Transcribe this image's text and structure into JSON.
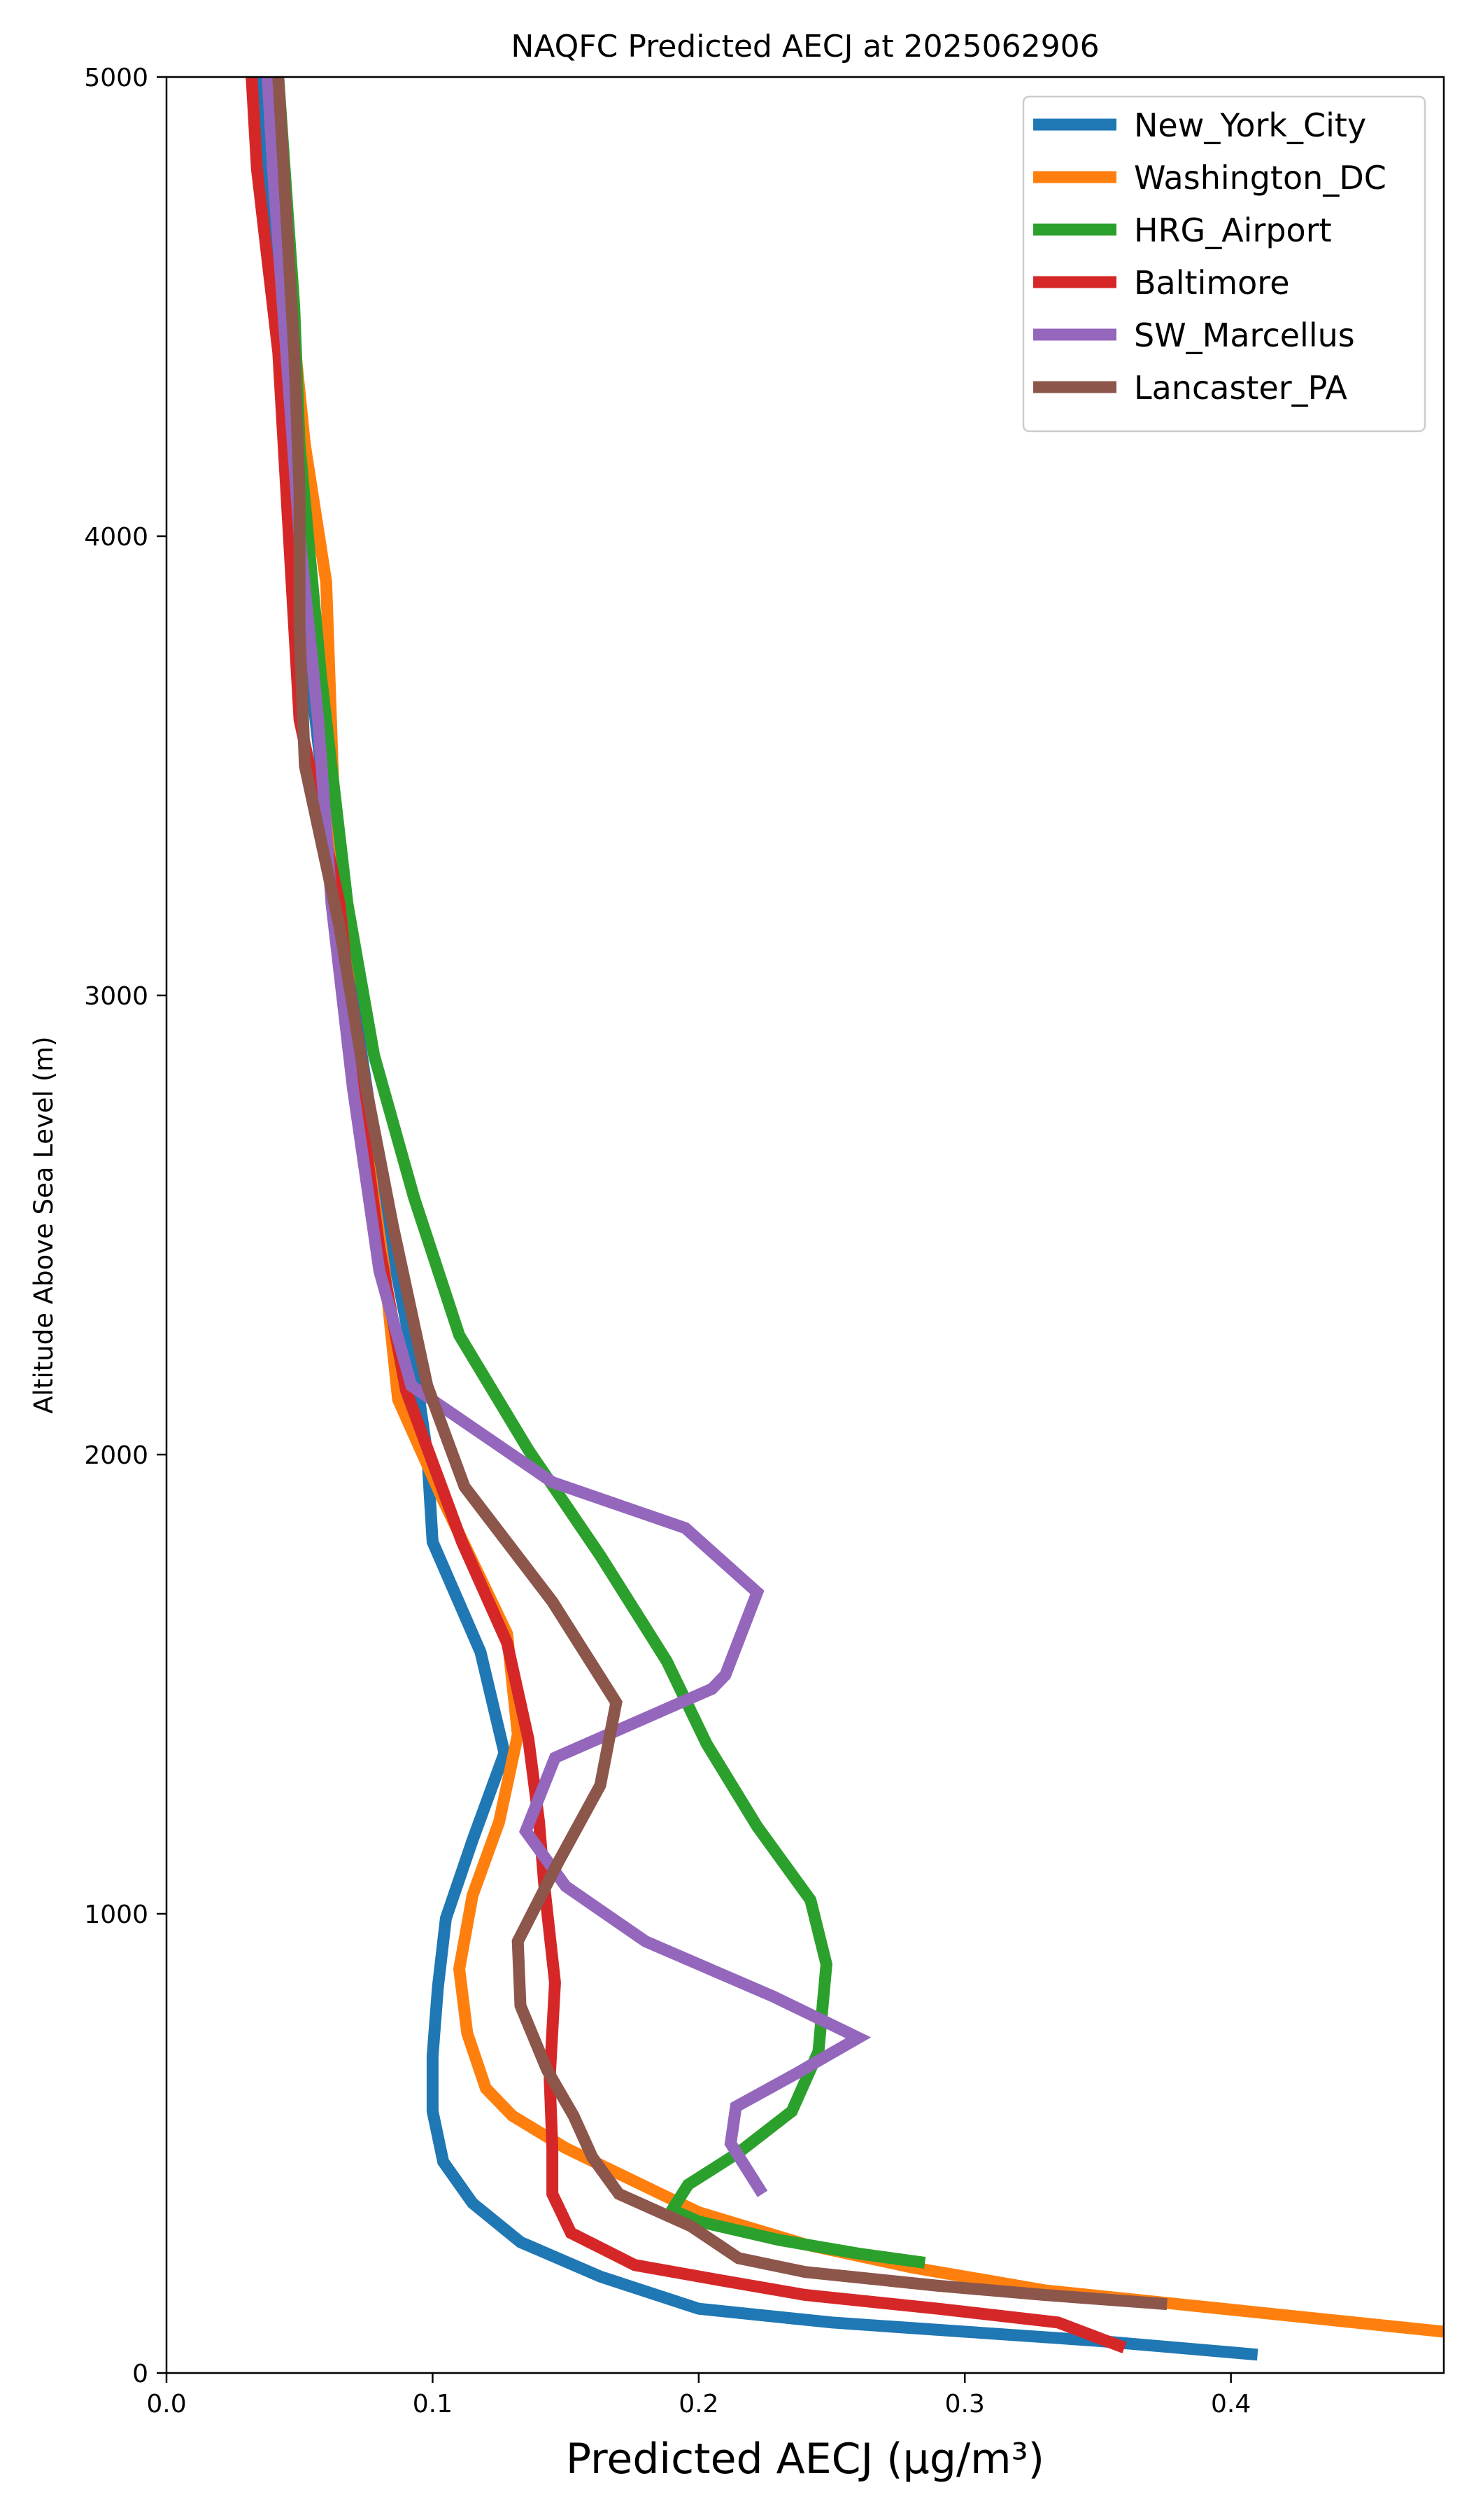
{
  "chart_data": {
    "type": "line",
    "title": "NAQFC Predicted AECJ at 2025062906",
    "xlabel": "Predicted AECJ (μg/m³)",
    "ylabel": "Altitude Above Sea Level (m)",
    "xlim": [
      0,
      0.48
    ],
    "ylim": [
      0,
      5000
    ],
    "x_ticks": [
      0.0,
      0.1,
      0.2,
      0.3,
      0.4
    ],
    "x_tick_labels": [
      "0.0",
      "0.1",
      "0.2",
      "0.3",
      "0.4"
    ],
    "y_ticks": [
      0,
      1000,
      2000,
      3000,
      4000,
      5000
    ],
    "y_tick_labels": [
      "0",
      "1000",
      "2000",
      "3000",
      "4000",
      "5000"
    ],
    "grid": false,
    "legend_position": "top-right",
    "series": [
      {
        "name": "New_York_City",
        "color": "#1f77b4",
        "points": [
          [
            0.41,
            40
          ],
          [
            0.35,
            70
          ],
          [
            0.3,
            90
          ],
          [
            0.25,
            110
          ],
          [
            0.2,
            140
          ],
          [
            0.163,
            210
          ],
          [
            0.133,
            285
          ],
          [
            0.115,
            370
          ],
          [
            0.104,
            460
          ],
          [
            0.1,
            570
          ],
          [
            0.1,
            690
          ],
          [
            0.102,
            840
          ],
          [
            0.105,
            990
          ],
          [
            0.115,
            1160
          ],
          [
            0.127,
            1350
          ],
          [
            0.118,
            1570
          ],
          [
            0.1,
            1810
          ],
          [
            0.098,
            2000
          ],
          [
            0.093,
            2200
          ],
          [
            0.083,
            2500
          ],
          [
            0.07,
            3000
          ],
          [
            0.058,
            3500
          ],
          [
            0.048,
            4000
          ],
          [
            0.042,
            4500
          ],
          [
            0.035,
            5000
          ]
        ]
      },
      {
        "name": "Washington_DC",
        "color": "#ff7f0e",
        "points": [
          [
            0.48,
            90
          ],
          [
            0.43,
            120
          ],
          [
            0.38,
            150
          ],
          [
            0.33,
            180
          ],
          [
            0.28,
            230
          ],
          [
            0.24,
            280
          ],
          [
            0.2,
            350
          ],
          [
            0.175,
            420
          ],
          [
            0.15,
            490
          ],
          [
            0.13,
            560
          ],
          [
            0.12,
            620
          ],
          [
            0.113,
            740
          ],
          [
            0.11,
            880
          ],
          [
            0.115,
            1040
          ],
          [
            0.125,
            1200
          ],
          [
            0.132,
            1390
          ],
          [
            0.128,
            1610
          ],
          [
            0.104,
            1900
          ],
          [
            0.087,
            2120
          ],
          [
            0.082,
            2400
          ],
          [
            0.072,
            2800
          ],
          [
            0.063,
            3400
          ],
          [
            0.06,
            3900
          ],
          [
            0.052,
            4200
          ],
          [
            0.045,
            4600
          ],
          [
            0.038,
            5000
          ]
        ]
      },
      {
        "name": "HRG_Airport",
        "color": "#2ca02c",
        "points": [
          [
            0.285,
            240
          ],
          [
            0.26,
            260
          ],
          [
            0.23,
            290
          ],
          [
            0.2,
            330
          ],
          [
            0.19,
            355
          ],
          [
            0.196,
            410
          ],
          [
            0.215,
            480
          ],
          [
            0.235,
            570
          ],
          [
            0.245,
            700
          ],
          [
            0.248,
            890
          ],
          [
            0.242,
            1030
          ],
          [
            0.222,
            1190
          ],
          [
            0.203,
            1370
          ],
          [
            0.188,
            1550
          ],
          [
            0.163,
            1780
          ],
          [
            0.136,
            2010
          ],
          [
            0.11,
            2260
          ],
          [
            0.093,
            2560
          ],
          [
            0.078,
            2870
          ],
          [
            0.068,
            3200
          ],
          [
            0.058,
            3700
          ],
          [
            0.05,
            4200
          ],
          [
            0.048,
            4500
          ],
          [
            0.042,
            5000
          ]
        ]
      },
      {
        "name": "Baltimore",
        "color": "#d62728",
        "points": [
          [
            0.36,
            55
          ],
          [
            0.335,
            110
          ],
          [
            0.29,
            140
          ],
          [
            0.24,
            170
          ],
          [
            0.21,
            200
          ],
          [
            0.176,
            235
          ],
          [
            0.152,
            305
          ],
          [
            0.145,
            390
          ],
          [
            0.145,
            490
          ],
          [
            0.144,
            640
          ],
          [
            0.146,
            850
          ],
          [
            0.142,
            1060
          ],
          [
            0.14,
            1200
          ],
          [
            0.136,
            1380
          ],
          [
            0.128,
            1590
          ],
          [
            0.111,
            1810
          ],
          [
            0.09,
            2140
          ],
          [
            0.08,
            2450
          ],
          [
            0.072,
            2800
          ],
          [
            0.065,
            3200
          ],
          [
            0.05,
            3600
          ],
          [
            0.046,
            4000
          ],
          [
            0.042,
            4400
          ],
          [
            0.034,
            4800
          ],
          [
            0.032,
            5000
          ]
        ]
      },
      {
        "name": "SW_Marcellus",
        "color": "#9467bd",
        "points": [
          [
            0.224,
            390
          ],
          [
            0.212,
            500
          ],
          [
            0.214,
            580
          ],
          [
            0.236,
            650
          ],
          [
            0.26,
            730
          ],
          [
            0.228,
            820
          ],
          [
            0.18,
            940
          ],
          [
            0.15,
            1060
          ],
          [
            0.135,
            1180
          ],
          [
            0.146,
            1340
          ],
          [
            0.205,
            1490
          ],
          [
            0.21,
            1520
          ],
          [
            0.222,
            1700
          ],
          [
            0.195,
            1840
          ],
          [
            0.145,
            1940
          ],
          [
            0.092,
            2150
          ],
          [
            0.08,
            2400
          ],
          [
            0.07,
            2800
          ],
          [
            0.062,
            3200
          ],
          [
            0.057,
            3600
          ],
          [
            0.05,
            4000
          ],
          [
            0.045,
            4400
          ],
          [
            0.04,
            4800
          ],
          [
            0.038,
            5000
          ]
        ]
      },
      {
        "name": "Lancaster_PA",
        "color": "#8c564b",
        "points": [
          [
            0.376,
            150
          ],
          [
            0.33,
            170
          ],
          [
            0.29,
            190
          ],
          [
            0.24,
            220
          ],
          [
            0.215,
            250
          ],
          [
            0.197,
            320
          ],
          [
            0.17,
            390
          ],
          [
            0.16,
            470
          ],
          [
            0.153,
            560
          ],
          [
            0.143,
            660
          ],
          [
            0.133,
            800
          ],
          [
            0.132,
            940
          ],
          [
            0.147,
            1110
          ],
          [
            0.163,
            1280
          ],
          [
            0.169,
            1460
          ],
          [
            0.145,
            1680
          ],
          [
            0.112,
            1930
          ],
          [
            0.098,
            2150
          ],
          [
            0.085,
            2500
          ],
          [
            0.075,
            2800
          ],
          [
            0.065,
            3150
          ],
          [
            0.052,
            3500
          ],
          [
            0.05,
            3800
          ],
          [
            0.05,
            4100
          ],
          [
            0.048,
            4400
          ],
          [
            0.045,
            4700
          ],
          [
            0.042,
            5000
          ]
        ]
      }
    ]
  }
}
